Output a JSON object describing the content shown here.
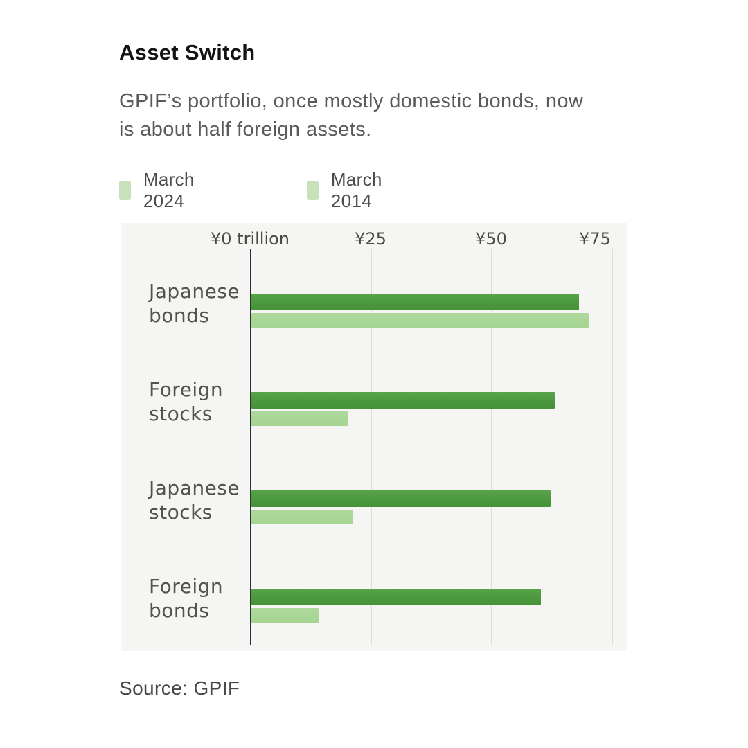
{
  "header": {
    "title": "Asset Switch",
    "subtitle_line1": "GPIF’s portfolio, once mostly domestic bonds, now",
    "subtitle_line2": "is about half foreign assets."
  },
  "legend": {
    "items": [
      {
        "label": "March 2024",
        "swatch_color": "#c7e2ba"
      },
      {
        "label": "March 2014",
        "swatch_color": "#c7e2ba"
      }
    ]
  },
  "chart_data": {
    "type": "bar",
    "orientation": "horizontal",
    "title": "Asset Switch",
    "categories": [
      "Japanese bonds",
      "Foreign stocks",
      "Japanese stocks",
      "Foreign bonds"
    ],
    "category_lines": [
      [
        "Japanese",
        "bonds"
      ],
      [
        "Foreign",
        "stocks"
      ],
      [
        "Japanese",
        "stocks"
      ],
      [
        "Foreign",
        "bonds"
      ]
    ],
    "series": [
      {
        "name": "March 2024",
        "color_dark": "#4f9b42",
        "values": [
          68,
          63,
          62,
          60
        ]
      },
      {
        "name": "March 2014",
        "color_light": "#a7d595",
        "values": [
          70,
          20,
          21,
          14
        ]
      }
    ],
    "x_ticks": [
      {
        "value": 0,
        "label": "¥0 trillion"
      },
      {
        "value": 25,
        "label": "¥25"
      },
      {
        "value": 50,
        "label": "¥50"
      },
      {
        "value": 75,
        "label": "¥75"
      }
    ],
    "xlim": [
      0,
      78.5
    ],
    "grid": true,
    "legend_position": "top",
    "panel_background": "#f5f6f3",
    "gridline_color": "#dcdcd9",
    "axis_color": "#2e2e2e"
  },
  "footer": {
    "source": "Source: GPIF"
  }
}
